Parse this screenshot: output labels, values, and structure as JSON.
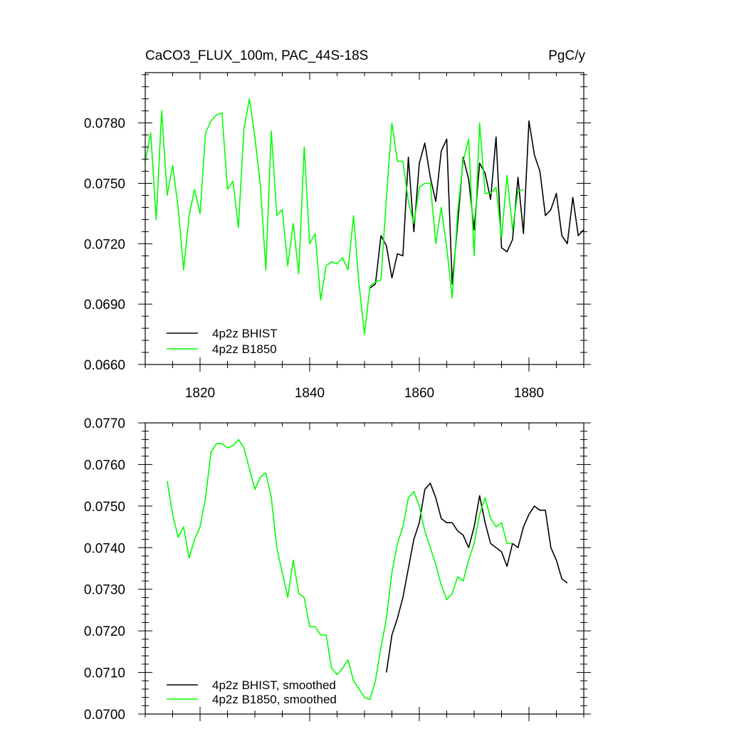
{
  "chart_data": [
    {
      "type": "line",
      "title": "CaCO3_FLUX_100m, PAC_44S-18S",
      "units": "PgC/y",
      "xlim": [
        1810,
        1890
      ],
      "ylim": [
        0.066,
        0.0805
      ],
      "x_ticks": [
        1820,
        1840,
        1860,
        1880
      ],
      "x_tick_labels": [
        "1820",
        "1840",
        "1860",
        "1880"
      ],
      "y_ticks": [
        0.066,
        0.069,
        0.072,
        0.075,
        0.078
      ],
      "y_tick_labels": [
        "0.0660",
        "0.0690",
        "0.0720",
        "0.0750",
        "0.0780"
      ],
      "legend_position": "bottom-left",
      "series": [
        {
          "name": "4p2z BHIST",
          "color": "#000000",
          "x_start": 1851,
          "values": [
            0.0698,
            0.07,
            0.0724,
            0.0719,
            0.0703,
            0.0715,
            0.0714,
            0.0763,
            0.0726,
            0.076,
            0.077,
            0.0753,
            0.0741,
            0.0766,
            0.0772,
            0.07,
            0.073,
            0.0763,
            0.0752,
            0.0727,
            0.076,
            0.0755,
            0.0742,
            0.0773,
            0.0718,
            0.0716,
            0.0722,
            0.0753,
            0.0725,
            0.0781,
            0.0764,
            0.0756,
            0.0734,
            0.0737,
            0.0745,
            0.0724,
            0.072,
            0.0743,
            0.0724,
            0.0727
          ]
        },
        {
          "name": "4p2z B1850",
          "color": "#00ff00",
          "x_start": 1810,
          "values": [
            0.0761,
            0.0775,
            0.0732,
            0.0786,
            0.0744,
            0.0759,
            0.0738,
            0.0707,
            0.0734,
            0.0747,
            0.0735,
            0.0775,
            0.0781,
            0.0784,
            0.0785,
            0.0747,
            0.0751,
            0.0728,
            0.0777,
            0.0792,
            0.0773,
            0.0749,
            0.0707,
            0.0776,
            0.0734,
            0.0737,
            0.0709,
            0.073,
            0.0705,
            0.0768,
            0.072,
            0.0725,
            0.0692,
            0.0709,
            0.0711,
            0.071,
            0.0713,
            0.0707,
            0.0734,
            0.07,
            0.0675,
            0.0699,
            0.0701,
            0.0702,
            0.0743,
            0.078,
            0.0761,
            0.0761,
            0.0741,
            0.073,
            0.0748,
            0.075,
            0.075,
            0.072,
            0.0738,
            0.0718,
            0.0693,
            0.0736,
            0.0761,
            0.0772,
            0.0714,
            0.078,
            0.0745,
            0.0745,
            0.0748,
            0.0723,
            0.0754,
            0.0727,
            0.0746,
            0.0747
          ]
        }
      ]
    },
    {
      "type": "line",
      "xlim": [
        1810,
        1890
      ],
      "ylim": [
        0.07,
        0.077
      ],
      "x_ticks": [
        1820,
        1840,
        1860,
        1880
      ],
      "y_ticks": [
        0.07,
        0.071,
        0.072,
        0.073,
        0.074,
        0.075,
        0.076,
        0.077
      ],
      "y_tick_labels": [
        "0.0700",
        "0.0710",
        "0.0720",
        "0.0730",
        "0.0740",
        "0.0750",
        "0.0760",
        "0.0770"
      ],
      "legend_position": "bottom-left",
      "series": [
        {
          "name": "4p2z BHIST, smoothed",
          "color": "#000000",
          "x_start": 1854,
          "values": [
            0.071,
            0.0719,
            0.0723,
            0.0728,
            0.0735,
            0.0742,
            0.0746,
            0.0754,
            0.07555,
            0.0752,
            0.0747,
            0.0746,
            0.0746,
            0.0744,
            0.0743,
            0.074,
            0.0745,
            0.07525,
            0.0746,
            0.0741,
            0.074,
            0.0739,
            0.07355,
            0.0741,
            0.074,
            0.0745,
            0.0748,
            0.075,
            0.0749,
            0.0749,
            0.074,
            0.0737,
            0.07325,
            0.07315
          ]
        },
        {
          "name": "4p2z B1850, smoothed",
          "color": "#00ff00",
          "x_start": 1814,
          "values": [
            0.0756,
            0.0748,
            0.07425,
            0.0745,
            0.07375,
            0.0742,
            0.0745,
            0.0752,
            0.0763,
            0.0765,
            0.0765,
            0.0764,
            0.07645,
            0.0766,
            0.0764,
            0.0759,
            0.0754,
            0.0757,
            0.0758,
            0.0752,
            0.074,
            0.0734,
            0.0728,
            0.0737,
            0.0729,
            0.0728,
            0.0721,
            0.0721,
            0.0719,
            0.0719,
            0.0711,
            0.07095,
            0.0711,
            0.0713,
            0.0708,
            0.0706,
            0.0704,
            0.07035,
            0.0708,
            0.0716,
            0.0723,
            0.0734,
            0.0741,
            0.0745,
            0.0752,
            0.07535,
            0.075,
            0.0744,
            0.074,
            0.0736,
            0.0731,
            0.07275,
            0.0729,
            0.0733,
            0.0732,
            0.0737,
            0.0741,
            0.0748,
            0.0752,
            0.0747,
            0.0745,
            0.0746,
            0.0741,
            0.0741
          ]
        }
      ]
    }
  ]
}
